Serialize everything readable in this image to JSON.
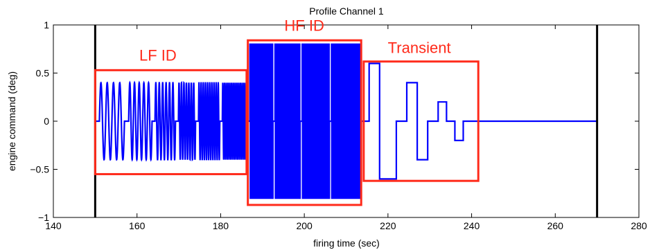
{
  "chart_data": {
    "type": "line",
    "title": "Profile Channel 1",
    "xlabel": "firing time (sec)",
    "ylabel": "engine command (deg)",
    "xlim": [
      140,
      280
    ],
    "ylim": [
      -1,
      1
    ],
    "xticks": [
      140,
      160,
      180,
      200,
      220,
      240,
      260,
      280
    ],
    "xtick_labels": [
      "140",
      "160",
      "180",
      "200",
      "220",
      "240",
      "260",
      "280"
    ],
    "yticks": [
      -1,
      -0.5,
      0,
      0.5,
      1
    ],
    "ytick_labels": [
      "−1",
      "−0.5",
      "0",
      "0.5",
      "1"
    ],
    "grid": false,
    "series_color": "#0000ff",
    "vertical_markers": [
      150,
      270
    ],
    "marker_color": "#000000",
    "lf_id": {
      "x_start": 150,
      "x_end": 186.3,
      "amplitude": 0.4,
      "bursts": [
        {
          "start": 151.0,
          "end": 157.0,
          "cycles": 4
        },
        {
          "start": 158.0,
          "end": 163.6,
          "cycles": 5
        },
        {
          "start": 164.3,
          "end": 169.2,
          "cycles": 6
        },
        {
          "start": 169.9,
          "end": 174.0,
          "cycles": 7
        },
        {
          "start": 174.7,
          "end": 179.8,
          "cycles": 10
        },
        {
          "start": 180.4,
          "end": 186.3,
          "cycles": 14
        }
      ]
    },
    "hf_id": {
      "x_start": 186.8,
      "x_end": 213.3,
      "amplitude": 0.8,
      "bursts": [
        {
          "start": 187.0,
          "end": 192.5,
          "cycles": 30
        },
        {
          "start": 193.0,
          "end": 199.0,
          "cycles": 36
        },
        {
          "start": 199.5,
          "end": 206.0,
          "cycles": 42
        },
        {
          "start": 206.5,
          "end": 213.3,
          "cycles": 48
        }
      ]
    },
    "transient": {
      "x": [
        213.3,
        215.5,
        215.5,
        218.0,
        218.0,
        222.0,
        222.0,
        224.5,
        224.5,
        227.0,
        227.0,
        229.5,
        229.5,
        232.0,
        232.0,
        234.0,
        234.0,
        236.0,
        236.0,
        238.0,
        238.0,
        240.5,
        240.5,
        270
      ],
      "y": [
        0,
        0,
        0.6,
        0.6,
        -0.6,
        -0.6,
        0,
        0,
        0.4,
        0.4,
        -0.4,
        -0.4,
        0,
        0,
        0.2,
        0.2,
        0,
        0,
        -0.2,
        -0.2,
        0,
        0,
        0,
        0
      ]
    },
    "annotations": [
      {
        "text": "LF ID",
        "box_x": [
          150,
          186.2
        ],
        "box_y": [
          -0.55,
          0.53
        ],
        "label_x": 165,
        "label_y": 0.63
      },
      {
        "text": "HF ID",
        "box_x": [
          186.5,
          213.6
        ],
        "box_y": [
          -0.87,
          0.84
        ],
        "label_x": 200,
        "label_y": 0.94
      },
      {
        "text": "Transient",
        "box_x": [
          214.2,
          241.6
        ],
        "box_y": [
          -0.62,
          0.62
        ],
        "label_x": 227.5,
        "label_y": 0.71
      }
    ],
    "annotation_color": "#ff2a1a"
  }
}
